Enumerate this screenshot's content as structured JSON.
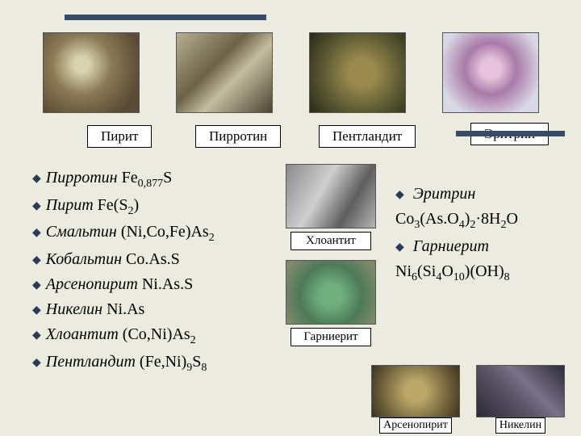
{
  "top_bar_color": "#3b4b63",
  "background_color": "#ecebe0",
  "row1_labels": {
    "pyrite": "Пирит",
    "pyrrhotite": "Пирротин",
    "pentlandite": "Пентландит",
    "erythrite": "Эритрин"
  },
  "mid_labels": {
    "chloanthite": "Хлоантит",
    "garnierite": "Гарниерит"
  },
  "bottom_labels": {
    "arsenopyrite": "Арсенопирит",
    "nickeline": "Никелин"
  },
  "left_list": [
    {
      "name": "Пирротин",
      "formula": "Fe<sub>0,877</sub>S"
    },
    {
      "name": "Пирит",
      "formula": "Fe(S<sub>2</sub>)"
    },
    {
      "name": "Смальтин",
      "formula": "(Ni,Co,Fe)As<sub>2</sub>"
    },
    {
      "name": "Кобальтин",
      "formula": "Co.As.S"
    },
    {
      "name": "Арсенопирит",
      "formula": "Ni.As.S"
    },
    {
      "name": "Никелин",
      "formula": "Ni.As"
    },
    {
      "name": "Хлоантит",
      "formula": "(Co,Ni)As<sub>2</sub>"
    },
    {
      "name": "Пентландит",
      "formula": "(Fe,Ni)<sub>9</sub>S<sub>8</sub>"
    }
  ],
  "right_list": [
    {
      "name": "Эритрин",
      "formula": "Co<sub>3</sub>(As.O<sub>4</sub>)<sub>2</sub>·8H<sub>2</sub>O"
    },
    {
      "name": "Гарниерит",
      "formula": "Ni<sub>6</sub>(Si<sub>4</sub>O<sub>10</sub>)(OH)<sub>8</sub>"
    }
  ],
  "list_font_size_pt": 15
}
